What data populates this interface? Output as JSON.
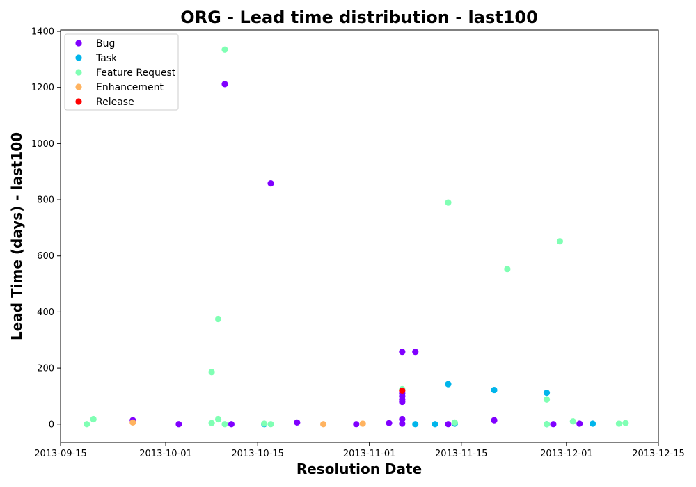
{
  "chart_data": {
    "type": "scatter",
    "title": "ORG - Lead time distribution - last100",
    "xlabel": "Resolution Date",
    "ylabel": "Lead Time (days) - last100",
    "xlim": [
      "2013-09-15",
      "2013-12-15"
    ],
    "ylim": [
      -65,
      1405
    ],
    "x_ticks": [
      "2013-09-15",
      "2013-10-01",
      "2013-10-15",
      "2013-11-01",
      "2013-11-15",
      "2013-12-01",
      "2013-12-15"
    ],
    "y_ticks": [
      0,
      200,
      400,
      600,
      800,
      1000,
      1200,
      1400
    ],
    "grid": false,
    "legend_position": "top-left",
    "series": [
      {
        "name": "Bug",
        "color": "#8000ff",
        "points": [
          {
            "x": "2013-09-26",
            "y": 14
          },
          {
            "x": "2013-10-03",
            "y": 0
          },
          {
            "x": "2013-10-10",
            "y": 1212
          },
          {
            "x": "2013-10-11",
            "y": 0
          },
          {
            "x": "2013-10-17",
            "y": 858
          },
          {
            "x": "2013-10-21",
            "y": 6
          },
          {
            "x": "2013-10-30",
            "y": 0
          },
          {
            "x": "2013-11-04",
            "y": 4
          },
          {
            "x": "2013-11-06",
            "y": 2
          },
          {
            "x": "2013-11-06",
            "y": 18
          },
          {
            "x": "2013-11-06",
            "y": 80
          },
          {
            "x": "2013-11-06",
            "y": 88
          },
          {
            "x": "2013-11-06",
            "y": 100
          },
          {
            "x": "2013-11-06",
            "y": 110
          },
          {
            "x": "2013-11-06",
            "y": 258
          },
          {
            "x": "2013-11-08",
            "y": 258
          },
          {
            "x": "2013-11-13",
            "y": 0
          },
          {
            "x": "2013-11-20",
            "y": 14
          },
          {
            "x": "2013-11-29",
            "y": 0
          },
          {
            "x": "2013-12-03",
            "y": 2
          }
        ]
      },
      {
        "name": "Task",
        "color": "#00b5eb",
        "points": [
          {
            "x": "2013-10-16",
            "y": 0
          },
          {
            "x": "2013-11-08",
            "y": 0
          },
          {
            "x": "2013-11-11",
            "y": 0
          },
          {
            "x": "2013-11-13",
            "y": 143
          },
          {
            "x": "2013-11-14",
            "y": 2
          },
          {
            "x": "2013-11-20",
            "y": 122
          },
          {
            "x": "2013-11-28",
            "y": 0
          },
          {
            "x": "2013-11-28",
            "y": 112
          },
          {
            "x": "2013-12-05",
            "y": 2
          }
        ]
      },
      {
        "name": "Feature Request",
        "color": "#80ffb4",
        "points": [
          {
            "x": "2013-09-19",
            "y": 0
          },
          {
            "x": "2013-09-20",
            "y": 18
          },
          {
            "x": "2013-10-08",
            "y": 4
          },
          {
            "x": "2013-10-08",
            "y": 186
          },
          {
            "x": "2013-10-09",
            "y": 18
          },
          {
            "x": "2013-10-09",
            "y": 375
          },
          {
            "x": "2013-10-10",
            "y": 0
          },
          {
            "x": "2013-10-10",
            "y": 1335
          },
          {
            "x": "2013-10-16",
            "y": 2
          },
          {
            "x": "2013-10-17",
            "y": 0
          },
          {
            "x": "2013-11-06",
            "y": 125
          },
          {
            "x": "2013-11-13",
            "y": 790
          },
          {
            "x": "2013-11-14",
            "y": 6
          },
          {
            "x": "2013-11-22",
            "y": 553
          },
          {
            "x": "2013-11-28",
            "y": 88
          },
          {
            "x": "2013-11-28",
            "y": 0
          },
          {
            "x": "2013-11-30",
            "y": 652
          },
          {
            "x": "2013-12-02",
            "y": 10
          },
          {
            "x": "2013-12-09",
            "y": 2
          },
          {
            "x": "2013-12-10",
            "y": 4
          }
        ]
      },
      {
        "name": "Enhancement",
        "color": "#ffb360",
        "points": [
          {
            "x": "2013-09-26",
            "y": 6
          },
          {
            "x": "2013-10-25",
            "y": 0
          },
          {
            "x": "2013-10-31",
            "y": 2
          }
        ]
      },
      {
        "name": "Release",
        "color": "#ff0000",
        "points": [
          {
            "x": "2013-11-06",
            "y": 120
          }
        ]
      }
    ]
  }
}
